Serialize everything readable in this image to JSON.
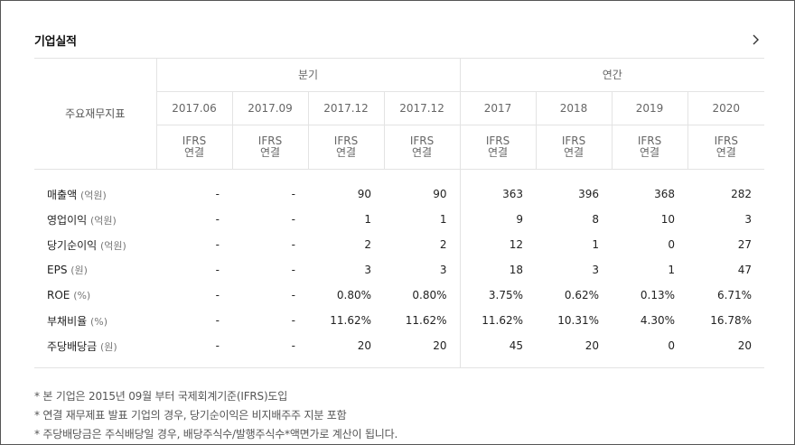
{
  "section_title": "기업실적",
  "metric_header": "주요재무지표",
  "groups": {
    "quarter": "분기",
    "annual": "연간"
  },
  "periods": [
    "2017.06",
    "2017.09",
    "2017.12",
    "2017.12",
    "2017",
    "2018",
    "2019",
    "2020"
  ],
  "ifrs": {
    "line1": "IFRS",
    "line2": "연결"
  },
  "rows": [
    {
      "label": "매출액",
      "unit": "(억원)",
      "values": [
        "-",
        "-",
        "90",
        "90",
        "363",
        "396",
        "368",
        "282"
      ]
    },
    {
      "label": "영업이익",
      "unit": "(억원)",
      "values": [
        "-",
        "-",
        "1",
        "1",
        "9",
        "8",
        "10",
        "3"
      ]
    },
    {
      "label": "당기순이익",
      "unit": "(억원)",
      "values": [
        "-",
        "-",
        "2",
        "2",
        "12",
        "1",
        "0",
        "27"
      ]
    },
    {
      "label": "EPS",
      "unit": "(원)",
      "values": [
        "-",
        "-",
        "3",
        "3",
        "18",
        "3",
        "1",
        "47"
      ]
    },
    {
      "label": "ROE",
      "unit": "(%)",
      "values": [
        "-",
        "-",
        "0.80%",
        "0.80%",
        "3.75%",
        "0.62%",
        "0.13%",
        "6.71%"
      ]
    },
    {
      "label": "부채비율",
      "unit": "(%)",
      "values": [
        "-",
        "-",
        "11.62%",
        "11.62%",
        "11.62%",
        "10.31%",
        "4.30%",
        "16.78%"
      ]
    },
    {
      "label": "주당배당금",
      "unit": "(원)",
      "values": [
        "-",
        "-",
        "20",
        "20",
        "45",
        "20",
        "0",
        "20"
      ]
    }
  ],
  "notes": [
    {
      "pre": "* 본 기업은 ",
      "hl": "2015년 09월",
      "post": " 부터 국제회계기준(IFRS)도입"
    },
    {
      "pre": "* 연결 재무제표 발표 기업의 경우, 당기순이익은 비지배주주 지분 포함",
      "hl": "",
      "post": ""
    },
    {
      "pre": "* 주당배당금은 주식배당일 경우, 배당주식수/발행주식수*액면가로 계산이 됩니다.",
      "hl": "",
      "post": ""
    }
  ]
}
